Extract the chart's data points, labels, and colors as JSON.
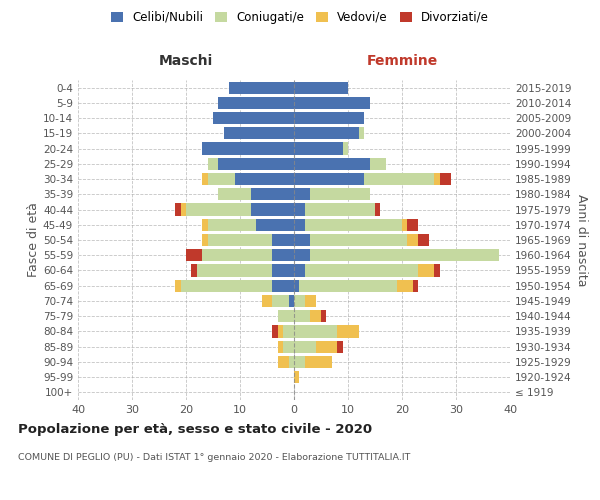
{
  "age_groups": [
    "100+",
    "95-99",
    "90-94",
    "85-89",
    "80-84",
    "75-79",
    "70-74",
    "65-69",
    "60-64",
    "55-59",
    "50-54",
    "45-49",
    "40-44",
    "35-39",
    "30-34",
    "25-29",
    "20-24",
    "15-19",
    "10-14",
    "5-9",
    "0-4"
  ],
  "birth_years": [
    "≤ 1919",
    "1920-1924",
    "1925-1929",
    "1930-1934",
    "1935-1939",
    "1940-1944",
    "1945-1949",
    "1950-1954",
    "1955-1959",
    "1960-1964",
    "1965-1969",
    "1970-1974",
    "1975-1979",
    "1980-1984",
    "1985-1989",
    "1990-1994",
    "1995-1999",
    "2000-2004",
    "2005-2009",
    "2010-2014",
    "2015-2019"
  ],
  "maschi": {
    "celibi": [
      0,
      0,
      0,
      0,
      0,
      0,
      1,
      4,
      4,
      4,
      4,
      7,
      8,
      8,
      11,
      14,
      17,
      13,
      15,
      14,
      12
    ],
    "coniugati": [
      0,
      0,
      1,
      2,
      2,
      3,
      3,
      17,
      14,
      13,
      12,
      9,
      12,
      6,
      5,
      2,
      0,
      0,
      0,
      0,
      0
    ],
    "vedovi": [
      0,
      0,
      2,
      1,
      1,
      0,
      2,
      1,
      0,
      0,
      1,
      1,
      1,
      0,
      1,
      0,
      0,
      0,
      0,
      0,
      0
    ],
    "divorziati": [
      0,
      0,
      0,
      0,
      1,
      0,
      0,
      0,
      1,
      3,
      0,
      0,
      1,
      0,
      0,
      0,
      0,
      0,
      0,
      0,
      0
    ]
  },
  "femmine": {
    "nubili": [
      0,
      0,
      0,
      0,
      0,
      0,
      0,
      1,
      2,
      3,
      3,
      2,
      2,
      3,
      13,
      14,
      9,
      12,
      13,
      14,
      10
    ],
    "coniugate": [
      0,
      0,
      2,
      4,
      8,
      3,
      2,
      18,
      21,
      35,
      18,
      18,
      13,
      11,
      13,
      3,
      1,
      1,
      0,
      0,
      0
    ],
    "vedove": [
      0,
      1,
      5,
      4,
      4,
      2,
      2,
      3,
      3,
      0,
      2,
      1,
      0,
      0,
      1,
      0,
      0,
      0,
      0,
      0,
      0
    ],
    "divorziate": [
      0,
      0,
      0,
      1,
      0,
      1,
      0,
      1,
      1,
      0,
      2,
      2,
      1,
      0,
      2,
      0,
      0,
      0,
      0,
      0,
      0
    ]
  },
  "colors": {
    "celibi_nubili": "#4a72b0",
    "coniugati": "#c5d9a0",
    "vedovi": "#f0c050",
    "divorziati": "#c0392b"
  },
  "xlim": 40,
  "title": "Popolazione per età, sesso e stato civile - 2020",
  "subtitle": "COMUNE DI PEGLIO (PU) - Dati ISTAT 1° gennaio 2020 - Elaborazione TUTTITALIA.IT",
  "ylabel_left": "Fasce di età",
  "ylabel_right": "Anni di nascita",
  "xlabel_left": "Maschi",
  "xlabel_right": "Femmine",
  "legend_labels": [
    "Celibi/Nubili",
    "Coniugati/e",
    "Vedovi/e",
    "Divorziati/e"
  ],
  "bg_color": "#ffffff"
}
